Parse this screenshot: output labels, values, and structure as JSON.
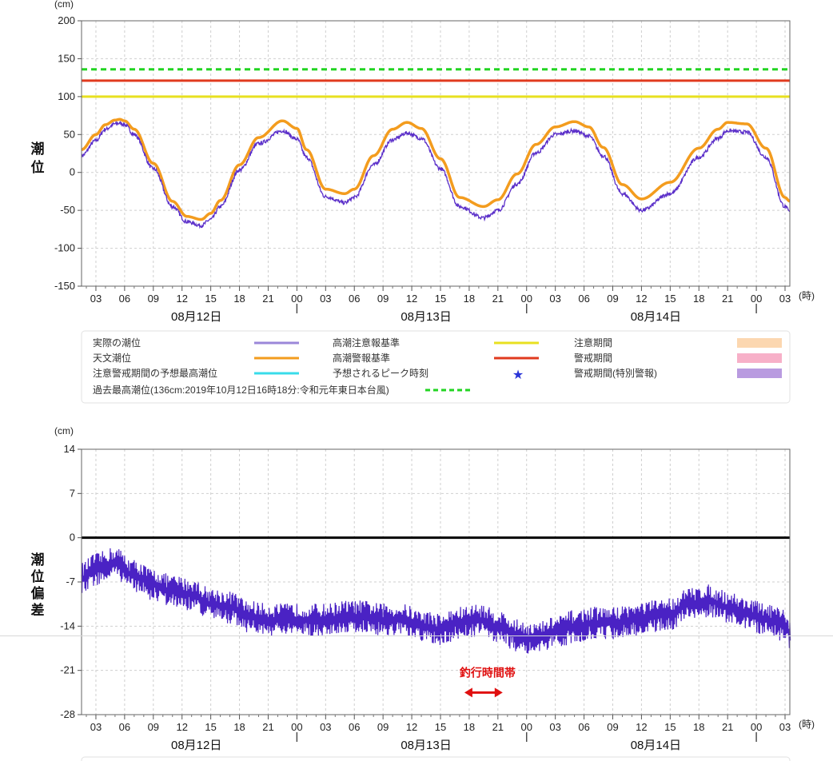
{
  "chart_data": [
    {
      "type": "line",
      "unit_label": "(cm)",
      "ylabel": "潮位",
      "ylim": [
        -150,
        200
      ],
      "yticks": [
        200,
        150,
        100,
        50,
        0,
        -50,
        -100,
        -150
      ],
      "x_unit_label": "(時)",
      "x_ticks": [
        "03",
        "06",
        "09",
        "12",
        "15",
        "18",
        "21",
        "00",
        "03",
        "06",
        "09",
        "12",
        "15",
        "18",
        "21",
        "00",
        "03",
        "06",
        "09",
        "12",
        "15",
        "18",
        "21",
        "00",
        "03"
      ],
      "x_tick_hours": [
        0,
        3,
        6,
        9,
        12,
        15,
        18,
        21,
        24,
        27,
        30,
        33,
        36,
        39,
        42,
        45,
        48,
        51,
        54,
        57,
        60,
        63,
        66,
        69,
        72
      ],
      "x_range_hours": [
        -1.5,
        72.5
      ],
      "x_start_time": "08/12 03:00",
      "date_labels": [
        {
          "label": "08月12日",
          "center_hour": 10.5
        },
        {
          "label": "08月13日",
          "center_hour": 34.5
        },
        {
          "label": "08月14日",
          "center_hour": 58.5
        }
      ],
      "day_boundaries_hours": [
        21,
        45,
        69
      ],
      "grid": true,
      "series": [
        {
          "name": "実際の潮位",
          "color": "#5b2fc9",
          "x": [
            -1.5,
            0,
            1,
            2,
            2.5,
            3,
            4,
            6,
            8,
            9.5,
            11,
            12,
            13,
            15,
            17,
            19.5,
            21,
            22,
            24,
            26,
            27,
            29,
            31,
            32.5,
            34,
            36,
            38,
            40.5,
            42,
            44,
            46,
            48,
            50,
            51.5,
            53,
            55,
            57,
            60,
            63,
            65,
            66,
            68,
            70,
            72,
            72.5
          ],
          "y": [
            22,
            42,
            57,
            64,
            65,
            63,
            50,
            5,
            -45,
            -65,
            -70,
            -62,
            -45,
            3,
            38,
            55,
            44,
            20,
            -32,
            -40,
            -33,
            10,
            43,
            52,
            45,
            5,
            -45,
            -60,
            -50,
            -15,
            26,
            50,
            55,
            48,
            22,
            -28,
            -50,
            -28,
            20,
            45,
            55,
            53,
            20,
            -45,
            -52
          ]
        },
        {
          "name": "天文潮位",
          "color": "#f39c1e",
          "x": [
            -1.5,
            0,
            1,
            2,
            2.5,
            3,
            4,
            6,
            8,
            9.5,
            11,
            12,
            13,
            15,
            17,
            19.5,
            21,
            22,
            24,
            26,
            27,
            29,
            31,
            32.5,
            34,
            36,
            38,
            40.5,
            42,
            44,
            46,
            48,
            50,
            51.5,
            53,
            55,
            57,
            60,
            63,
            65,
            66,
            68,
            70,
            72,
            72.5
          ],
          "y": [
            30,
            50,
            63,
            69,
            70,
            68,
            57,
            12,
            -38,
            -58,
            -62,
            -54,
            -37,
            10,
            46,
            68,
            58,
            30,
            -22,
            -28,
            -22,
            22,
            57,
            66,
            58,
            18,
            -33,
            -45,
            -36,
            -2,
            37,
            60,
            67,
            60,
            33,
            -16,
            -35,
            -13,
            32,
            57,
            66,
            64,
            32,
            -33,
            -38
          ]
        },
        {
          "name": "高潮注意報基準",
          "color": "#e8e020",
          "constant": 100
        },
        {
          "name": "高潮警報基準",
          "color": "#e03a1e",
          "constant": 121
        },
        {
          "name": "過去最高潮位(136cm:2019年10月12日16時18分:令和元年東日本台風)",
          "color": "#22d422",
          "constant": 136,
          "style": "dashed"
        }
      ]
    },
    {
      "type": "line",
      "unit_label": "(cm)",
      "ylabel": "潮位偏差",
      "ylim": [
        -28,
        14
      ],
      "yticks": [
        14,
        7,
        0,
        -7,
        -14,
        -21,
        -28
      ],
      "x_unit_label": "(時)",
      "x_ticks": [
        "03",
        "06",
        "09",
        "12",
        "15",
        "18",
        "21",
        "00",
        "03",
        "06",
        "09",
        "12",
        "15",
        "18",
        "21",
        "00",
        "03",
        "06",
        "09",
        "12",
        "15",
        "18",
        "21",
        "00",
        "03"
      ],
      "x_range_hours": [
        -1.5,
        72.5
      ],
      "date_labels": [
        {
          "label": "08月12日",
          "center_hour": 10.5
        },
        {
          "label": "08月13日",
          "center_hour": 34.5
        },
        {
          "label": "08月14日",
          "center_hour": 58.5
        }
      ],
      "zero_line": 0,
      "grid": true,
      "series": [
        {
          "name": "潮位偏差",
          "color": "#4a22c4",
          "x": [
            -1.5,
            0,
            2,
            4,
            6,
            8,
            10,
            12,
            14,
            16,
            18,
            20,
            22,
            24,
            26,
            28,
            30,
            32,
            34,
            36,
            38,
            40,
            42,
            44,
            46,
            48,
            50,
            52,
            54,
            56,
            58,
            60,
            62,
            64,
            66,
            68,
            70,
            72,
            72.5
          ],
          "y": [
            -6.5,
            -5,
            -4,
            -6,
            -7.5,
            -8.5,
            -9,
            -10.5,
            -11,
            -12.5,
            -13,
            -13,
            -13,
            -13,
            -12.5,
            -12.5,
            -13,
            -13,
            -14,
            -14.5,
            -13.5,
            -13,
            -14,
            -15.5,
            -16,
            -15,
            -14,
            -13.5,
            -13.5,
            -13,
            -12.5,
            -12,
            -10.5,
            -10,
            -11,
            -12,
            -13,
            -14,
            -15
          ]
        }
      ],
      "annotation": {
        "label": "釣行時間帯",
        "from_hour": 38.5,
        "to_hour": 42.5,
        "value": -24.5,
        "color": "#e01010"
      }
    }
  ],
  "legend": {
    "items": [
      {
        "label": "実際の潮位",
        "swatch": "line",
        "color": "#9b87d9"
      },
      {
        "label": "高潮注意報基準",
        "swatch": "line",
        "color": "#e8e020"
      },
      {
        "label": "注意期間",
        "swatch": "box",
        "color": "#fcd7b0"
      },
      {
        "label": "天文潮位",
        "swatch": "line",
        "color": "#f39c1e"
      },
      {
        "label": "高潮警報基準",
        "swatch": "line",
        "color": "#e03a1e"
      },
      {
        "label": "警戒期間",
        "swatch": "box",
        "color": "#f7b0c8"
      },
      {
        "label": "注意警戒期間の予想最高潮位",
        "swatch": "line",
        "color": "#38dcea"
      },
      {
        "label": "予想されるピーク時刻",
        "swatch": "star",
        "color": "#2a35d8"
      },
      {
        "label": "警戒期間(特別警報)",
        "swatch": "box",
        "color": "#b99be0"
      },
      {
        "label": "過去最高潮位(136cm:2019年10月12日16時18分:令和元年東日本台風)",
        "swatch": "dash",
        "color": "#22d422"
      }
    ]
  }
}
